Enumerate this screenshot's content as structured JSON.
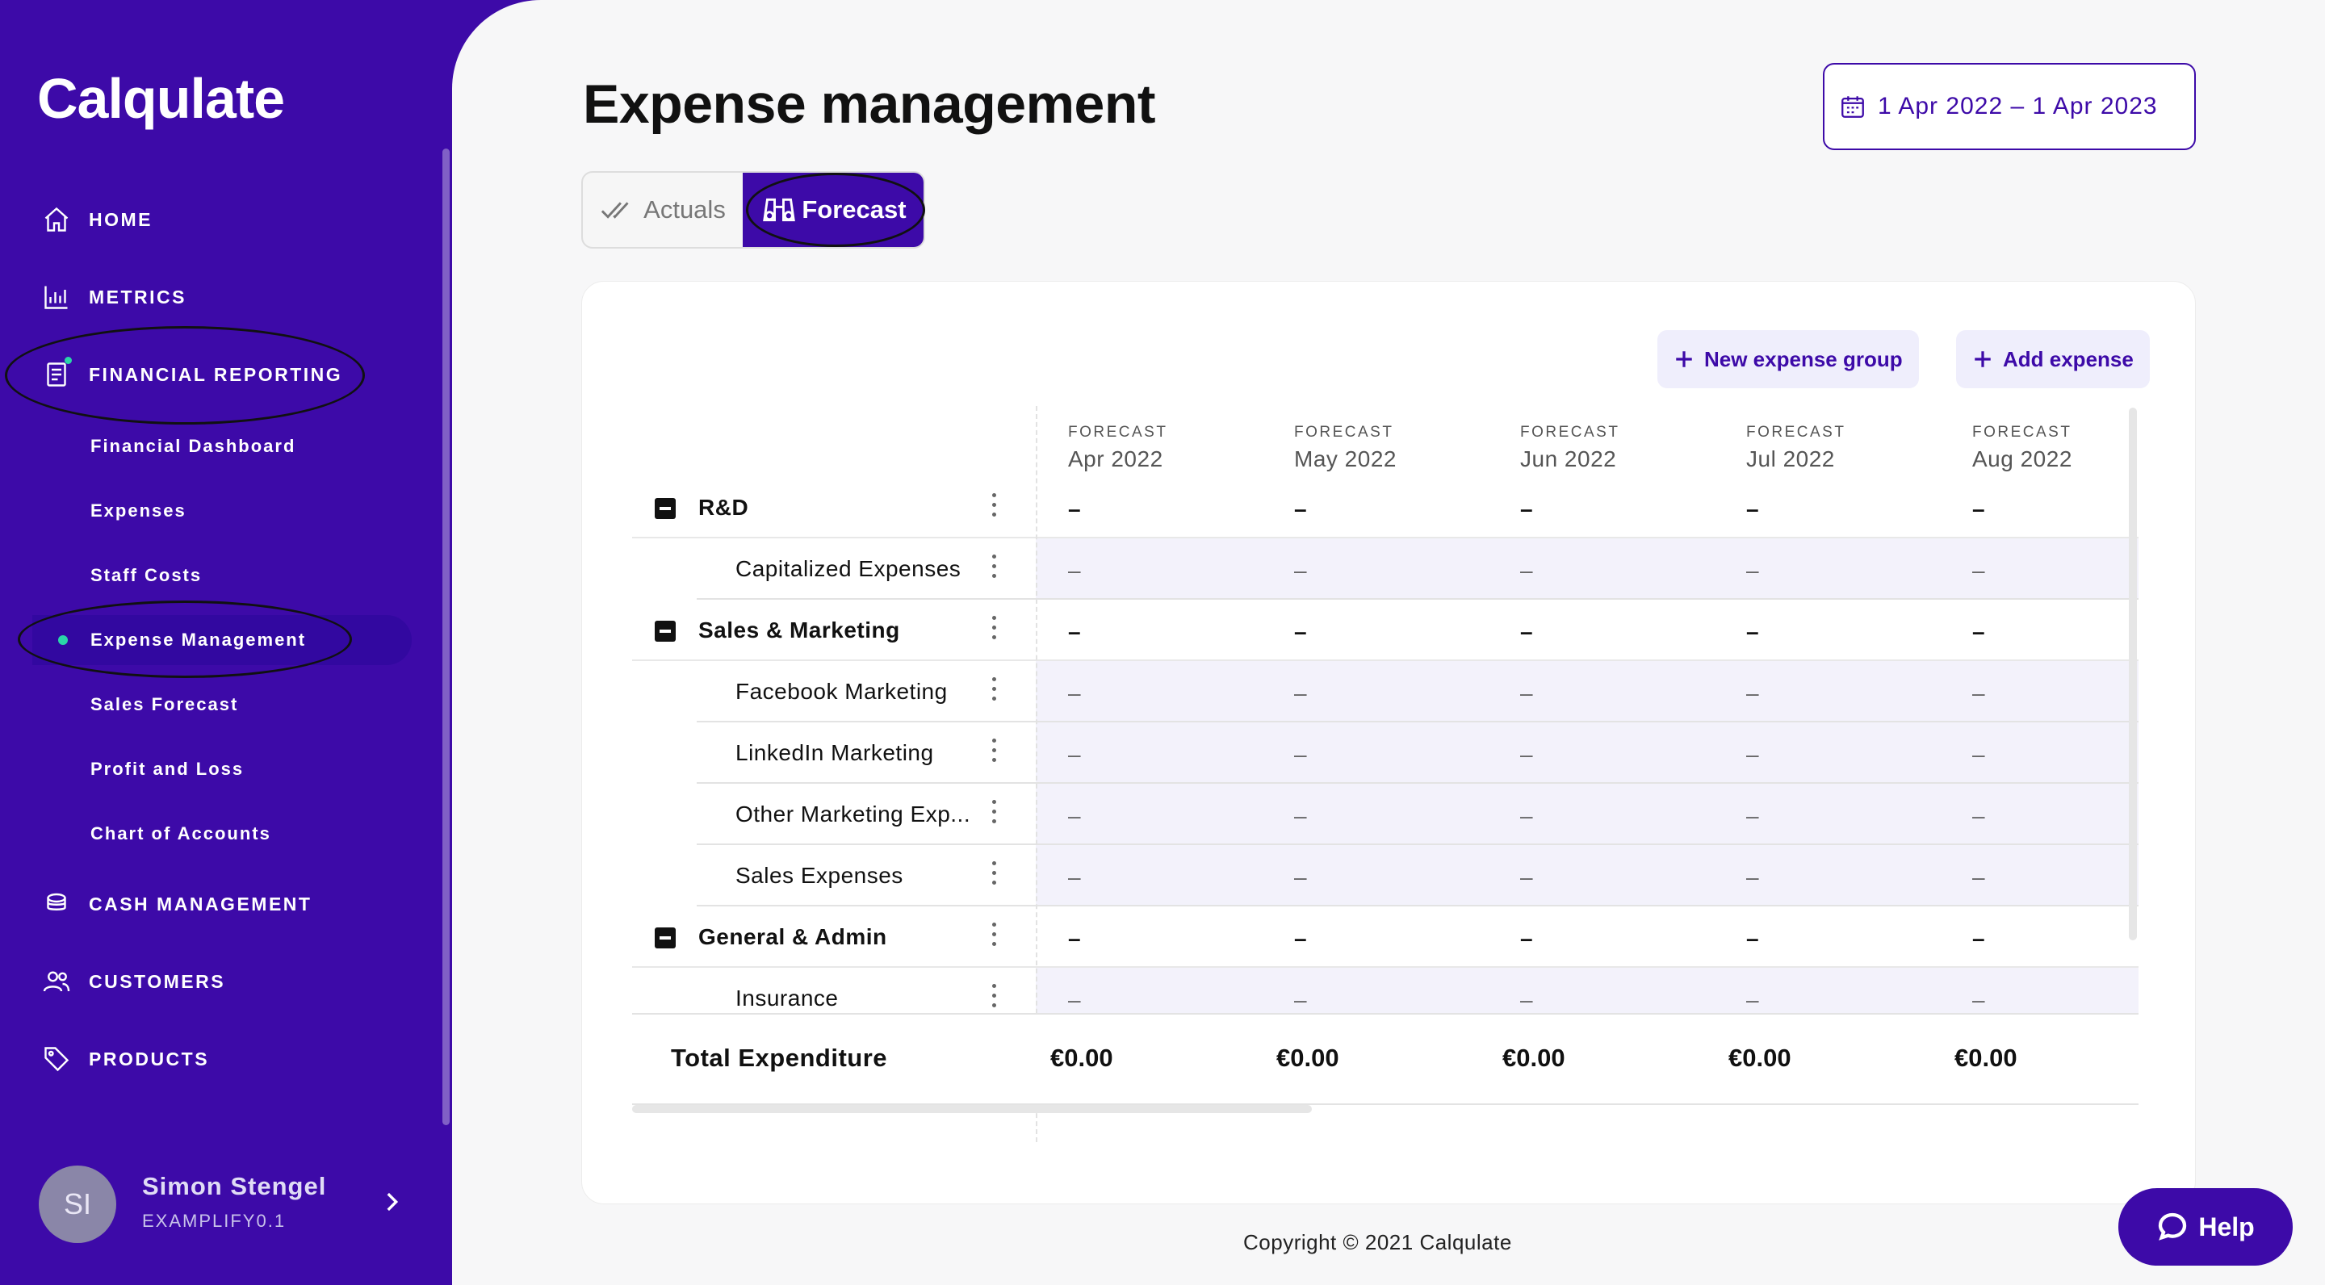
{
  "app": {
    "logo": "Calqulate"
  },
  "sidebar": {
    "nav": [
      {
        "label": "HOME",
        "icon": "home-icon"
      },
      {
        "label": "METRICS",
        "icon": "bar-chart-icon"
      },
      {
        "label": "FINANCIAL REPORTING",
        "icon": "report-icon"
      },
      {
        "label": "CASH MANAGEMENT",
        "icon": "coins-icon"
      },
      {
        "label": "CUSTOMERS",
        "icon": "users-icon"
      },
      {
        "label": "PRODUCTS",
        "icon": "tag-icon"
      }
    ],
    "sub_items": [
      {
        "label": "Financial Dashboard"
      },
      {
        "label": "Expenses"
      },
      {
        "label": "Staff Costs"
      },
      {
        "label": "Expense Management",
        "active": true
      },
      {
        "label": "Sales Forecast"
      },
      {
        "label": "Profit and Loss"
      },
      {
        "label": "Chart of Accounts"
      }
    ],
    "user": {
      "initials": "SI",
      "name": "Simon Stengel",
      "org": "EXAMPLIFY0.1"
    }
  },
  "header": {
    "title": "Expense management",
    "date_range": "1 Apr 2022 – 1 Apr 2023",
    "toggle": {
      "actuals": "Actuals",
      "forecast": "Forecast",
      "selected": "Forecast"
    }
  },
  "actions": {
    "new_group": "New expense group",
    "add_expense": "Add expense"
  },
  "table": {
    "columns": [
      {
        "label": "FORECAST",
        "month": "Apr 2022"
      },
      {
        "label": "FORECAST",
        "month": "May 2022"
      },
      {
        "label": "FORECAST",
        "month": "Jun 2022"
      },
      {
        "label": "FORECAST",
        "month": "Jul 2022"
      },
      {
        "label": "FORECAST",
        "month": "Aug 2022"
      }
    ],
    "rows": [
      {
        "type": "group",
        "name": "R&D",
        "values": [
          "–",
          "–",
          "–",
          "–",
          "–"
        ]
      },
      {
        "type": "child",
        "name": "Capitalized Expenses",
        "values": [
          "–",
          "–",
          "–",
          "–",
          "–"
        ]
      },
      {
        "type": "group",
        "name": "Sales & Marketing",
        "values": [
          "–",
          "–",
          "–",
          "–",
          "–"
        ]
      },
      {
        "type": "child",
        "name": "Facebook Marketing",
        "values": [
          "–",
          "–",
          "–",
          "–",
          "–"
        ]
      },
      {
        "type": "child",
        "name": "LinkedIn Marketing",
        "values": [
          "–",
          "–",
          "–",
          "–",
          "–"
        ]
      },
      {
        "type": "child",
        "name": "Other Marketing Exp...",
        "values": [
          "–",
          "–",
          "–",
          "–",
          "–"
        ]
      },
      {
        "type": "child",
        "name": "Sales Expenses",
        "values": [
          "–",
          "–",
          "–",
          "–",
          "–"
        ]
      },
      {
        "type": "group",
        "name": "General & Admin",
        "values": [
          "–",
          "–",
          "–",
          "–",
          "–"
        ]
      },
      {
        "type": "child",
        "name": "Insurance",
        "values": [
          "–",
          "–",
          "–",
          "–",
          "–"
        ]
      }
    ],
    "total": {
      "label": "Total Expenditure",
      "values": [
        "€0.00",
        "€0.00",
        "€0.00",
        "€0.00",
        "€0.00"
      ]
    }
  },
  "footer": {
    "copyright": "Copyright © 2021 Calqulate"
  },
  "help": {
    "label": "Help"
  },
  "colors": {
    "brand": "#3d0aa8",
    "accent": "#2ad6a8",
    "row_tint": "#f3f2fb"
  }
}
